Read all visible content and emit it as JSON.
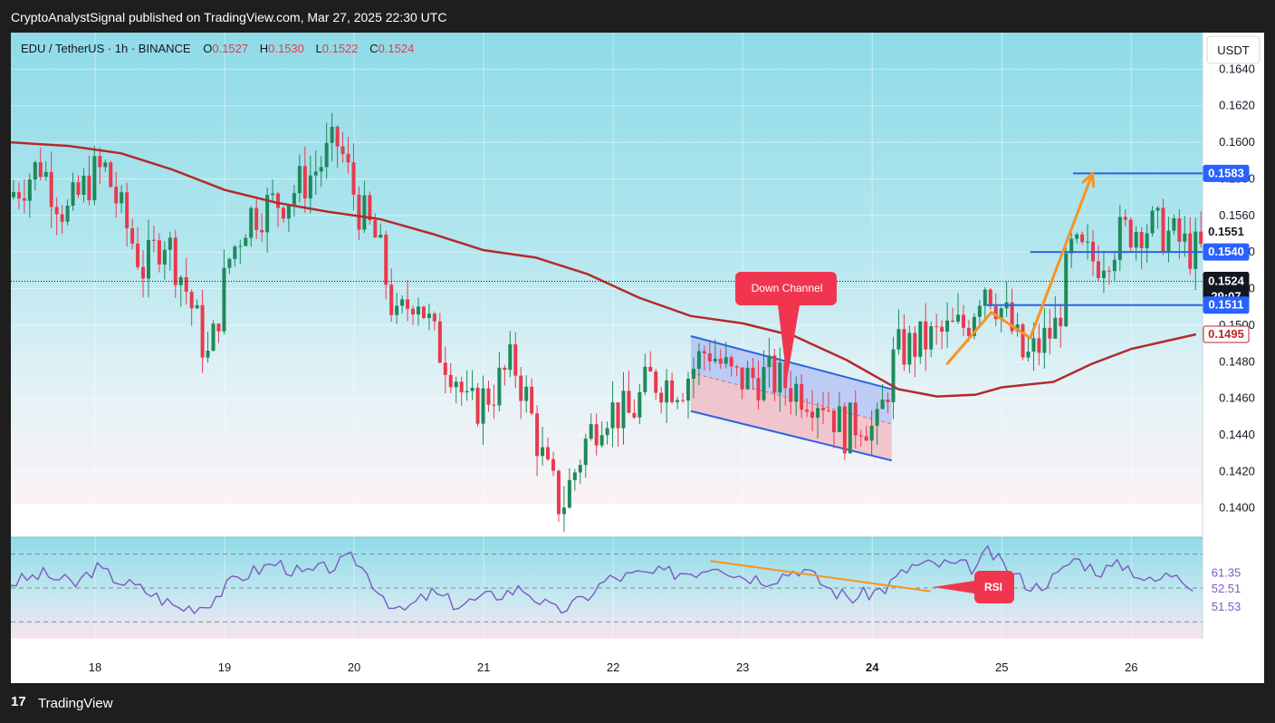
{
  "header": {
    "published": "CryptoAnalystSignal published on TradingView.com, Mar 27, 2025 22:30 UTC"
  },
  "footer": {
    "logo": "17",
    "brand": "TradingView"
  },
  "legend": {
    "symbol": "EDU / TetherUS · 1h · BINANCE",
    "o_label": "O",
    "o_value": "0.1527",
    "h_label": "H",
    "h_value": "0.1530",
    "l_label": "L",
    "l_value": "0.1522",
    "c_label": "C",
    "c_value": "0.1524"
  },
  "currency_button": "USDT",
  "colors": {
    "up": "#1e8a5a",
    "down": "#e83a4e",
    "ma": "#b22b2b",
    "bg_top": "#94dde7",
    "bg_bottom": "#fbe9f2",
    "level": "#2d63e0",
    "arrow": "#f79320"
  },
  "annotations": {
    "down_channel": "Down Channel",
    "rsi": "RSI"
  },
  "chart_data": [
    {
      "type": "candlestick",
      "title": "",
      "x_ticks": [
        "18",
        "19",
        "20",
        "21",
        "22",
        "23",
        "24",
        "25",
        "26"
      ],
      "y_ticks": [
        "0.1640",
        "0.1620",
        "0.1600",
        "0.1580",
        "0.1560",
        "0.1540",
        "0.1520",
        "0.1500",
        "0.1480",
        "0.1460",
        "0.1440",
        "0.1420",
        "0.1400"
      ],
      "ylim": [
        0.1384,
        0.166
      ],
      "last_price": 0.1524,
      "countdown": "29:07",
      "price_labels": [
        {
          "value": "0.1583",
          "kind": "level"
        },
        {
          "value": "0.1551",
          "kind": "plain"
        },
        {
          "value": "0.1540",
          "kind": "level"
        },
        {
          "value": "0.1524",
          "kind": "last"
        },
        {
          "value": "0.1511",
          "kind": "level"
        },
        {
          "value": "0.1495",
          "kind": "ma"
        }
      ],
      "levels": [
        0.1583,
        0.154,
        0.1511
      ],
      "ma_series": [
        [
          17.35,
          0.16
        ],
        [
          17.8,
          0.1598
        ],
        [
          18.2,
          0.1594
        ],
        [
          18.6,
          0.1585
        ],
        [
          19.0,
          0.1574
        ],
        [
          19.4,
          0.1567
        ],
        [
          19.8,
          0.1562
        ],
        [
          20.2,
          0.1558
        ],
        [
          20.6,
          0.155
        ],
        [
          21.0,
          0.1541
        ],
        [
          21.4,
          0.1537
        ],
        [
          21.8,
          0.1528
        ],
        [
          22.2,
          0.1515
        ],
        [
          22.6,
          0.1505
        ],
        [
          23.0,
          0.1501
        ],
        [
          23.4,
          0.1494
        ],
        [
          23.8,
          0.1481
        ],
        [
          24.2,
          0.1465
        ],
        [
          24.5,
          0.1461
        ],
        [
          24.8,
          0.1462
        ],
        [
          25.0,
          0.1466
        ],
        [
          25.4,
          0.1469
        ],
        [
          25.7,
          0.1479
        ],
        [
          26.0,
          0.1487
        ],
        [
          26.5,
          0.1495
        ]
      ],
      "path": [
        [
          17.35,
          0.157
        ],
        [
          17.6,
          0.1588
        ],
        [
          17.8,
          0.156
        ],
        [
          18.0,
          0.1582
        ],
        [
          18.1,
          0.1585
        ],
        [
          18.25,
          0.1556
        ],
        [
          18.4,
          0.153
        ],
        [
          18.55,
          0.155
        ],
        [
          18.7,
          0.1525
        ],
        [
          18.9,
          0.148
        ],
        [
          19.05,
          0.1535
        ],
        [
          19.2,
          0.156
        ],
        [
          19.5,
          0.157
        ],
        [
          19.7,
          0.1583
        ],
        [
          19.9,
          0.16
        ],
        [
          20.05,
          0.1565
        ],
        [
          20.2,
          0.1545
        ],
        [
          20.35,
          0.15
        ],
        [
          20.5,
          0.152
        ],
        [
          20.65,
          0.149
        ],
        [
          20.8,
          0.1475
        ],
        [
          20.9,
          0.1452
        ],
        [
          21.1,
          0.1465
        ],
        [
          21.25,
          0.148
        ],
        [
          21.35,
          0.146
        ],
        [
          21.5,
          0.142
        ],
        [
          21.62,
          0.14
        ],
        [
          21.8,
          0.1435
        ],
        [
          21.95,
          0.1455
        ],
        [
          22.15,
          0.145
        ],
        [
          22.3,
          0.147
        ],
        [
          22.55,
          0.1468
        ],
        [
          22.75,
          0.1488
        ],
        [
          22.95,
          0.147
        ],
        [
          23.2,
          0.1472
        ],
        [
          23.45,
          0.1465
        ],
        [
          23.65,
          0.146
        ],
        [
          23.8,
          0.1442
        ],
        [
          23.95,
          0.145
        ],
        [
          24.05,
          0.144
        ],
        [
          24.2,
          0.1485
        ],
        [
          24.45,
          0.1492
        ],
        [
          24.75,
          0.15
        ],
        [
          24.88,
          0.1525
        ],
        [
          25.05,
          0.1505
        ],
        [
          25.2,
          0.148
        ],
        [
          25.45,
          0.15
        ],
        [
          25.55,
          0.154
        ],
        [
          25.75,
          0.1535
        ],
        [
          25.95,
          0.155
        ],
        [
          26.1,
          0.1555
        ],
        [
          26.3,
          0.155
        ],
        [
          26.5,
          0.154
        ]
      ],
      "down_channel": {
        "upper": [
          [
            22.6,
            0.1494
          ],
          [
            24.15,
            0.1465
          ]
        ],
        "lower": [
          [
            22.6,
            0.1453
          ],
          [
            24.15,
            0.1426
          ]
        ],
        "mid": [
          [
            22.6,
            0.1474
          ],
          [
            24.15,
            0.1446
          ]
        ]
      },
      "orange_path": [
        [
          24.58,
          0.1479
        ],
        [
          24.92,
          0.1507
        ],
        [
          25.22,
          0.1493
        ],
        [
          25.7,
          0.1583
        ]
      ]
    },
    {
      "type": "line",
      "title": "",
      "name": "RSI",
      "levels": [
        70,
        50,
        30
      ],
      "value_labels": [
        "61.35",
        "52.51",
        "51.53"
      ],
      "ylim": [
        20,
        80
      ],
      "path": [
        [
          17.35,
          53
        ],
        [
          17.6,
          58
        ],
        [
          17.85,
          52
        ],
        [
          18.0,
          62
        ],
        [
          18.2,
          54
        ],
        [
          18.4,
          48
        ],
        [
          18.65,
          38
        ],
        [
          18.85,
          40
        ],
        [
          19.1,
          56
        ],
        [
          19.4,
          65
        ],
        [
          19.6,
          58
        ],
        [
          19.85,
          63
        ],
        [
          20.0,
          68
        ],
        [
          20.2,
          48
        ],
        [
          20.35,
          35
        ],
        [
          20.6,
          47
        ],
        [
          20.8,
          40
        ],
        [
          21.05,
          45
        ],
        [
          21.3,
          50
        ],
        [
          21.55,
          36
        ],
        [
          21.75,
          42
        ],
        [
          21.95,
          55
        ],
        [
          22.2,
          58
        ],
        [
          22.45,
          59
        ],
        [
          22.65,
          60
        ],
        [
          22.8,
          65
        ],
        [
          22.95,
          58
        ],
        [
          23.2,
          55
        ],
        [
          23.45,
          62
        ],
        [
          23.7,
          48
        ],
        [
          23.85,
          44
        ],
        [
          24.1,
          50
        ],
        [
          24.3,
          63
        ],
        [
          24.55,
          64
        ],
        [
          24.8,
          62
        ],
        [
          24.9,
          72
        ],
        [
          25.05,
          60
        ],
        [
          25.25,
          50
        ],
        [
          25.45,
          58
        ],
        [
          25.55,
          68
        ],
        [
          25.75,
          60
        ],
        [
          25.95,
          64
        ],
        [
          26.15,
          53
        ],
        [
          26.35,
          60
        ],
        [
          26.5,
          50
        ]
      ],
      "trendline": [
        [
          22.75,
          66
        ],
        [
          24.45,
          48
        ]
      ]
    }
  ]
}
